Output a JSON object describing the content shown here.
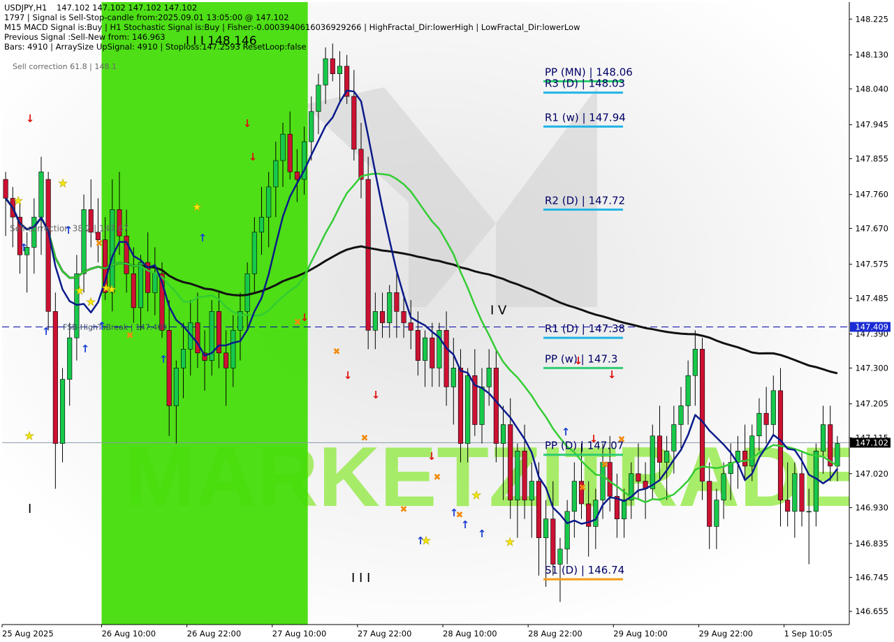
{
  "header": {
    "symbol": "USDJPY,H1",
    "ohlc": "147.102 147.102 147.102 147.102",
    "lines": [
      "1797 | Signal is Sell-Stop-candle from:2025.09.01 13:05:00 @ 147.102",
      "M15 MACD Signal is:Buy | H1 Stochastic Signal is:Buy | Fisher:-0.0003940616036929266 | HighFractal_Dir:lowerHigh | LowFractal_Dir:lowerLow",
      "Previous Signal :Sell-New from: 146.963",
      "Bars: 4910 | ArraySize UpSignal: 4910 | Stoploss:147.2593 ResetLoop:false"
    ]
  },
  "watermark": "MARKETZITRADE",
  "chart_data": {
    "type": "candlestick",
    "symbol": "USDJPY",
    "timeframe": "H1",
    "ylim": [
      146.62,
      148.27
    ],
    "y_ticks": [
      148.225,
      148.13,
      148.04,
      147.945,
      147.855,
      147.76,
      147.67,
      147.575,
      147.485,
      147.39,
      147.3,
      147.205,
      147.115,
      147.02,
      146.93,
      146.835,
      146.745,
      146.655
    ],
    "x_labels": [
      "25 Aug 2025",
      "26 Aug 10:00",
      "26 Aug 22:00",
      "27 Aug 10:00",
      "27 Aug 22:00",
      "28 Aug 10:00",
      "28 Aug 22:00",
      "29 Aug 10:00",
      "29 Aug 22:00",
      "1 Sep 10:05"
    ],
    "current_price": "147.102",
    "current_value": 147.102,
    "dashed_level_label": "147.409",
    "dashed_level": 147.409,
    "pivot_levels": [
      {
        "label": "PP (MN) | 148.06",
        "value": 148.06,
        "color": "#2ecc71"
      },
      {
        "label": "R3 (D) | 148.03",
        "value": 148.03,
        "color": "#1eb4e6"
      },
      {
        "label": "R1 (w) | 147.94",
        "value": 147.94,
        "color": "#1eb4e6"
      },
      {
        "label": "R2 (D) | 147.72",
        "value": 147.72,
        "color": "#1eb4e6"
      },
      {
        "label": "R1 (D) | 147.38",
        "value": 147.38,
        "color": "#1eb4e6"
      },
      {
        "label": "PP (w) | 147.3",
        "value": 147.3,
        "color": "#2ecc71"
      },
      {
        "label": "PP (D) | 147.07",
        "value": 147.07,
        "color": "#2ecc71"
      },
      {
        "label": "S1 (D) | 146.74",
        "value": 146.74,
        "color": "#f39c12"
      }
    ],
    "annotations": [
      {
        "text": "Sell correction 61.8 | 148.1",
        "value": 148.1
      },
      {
        "text": "Sell correction 38.2 | 147.67",
        "value": 147.67
      },
      {
        "text": "FSB-HighToBreak | 147.409",
        "value": 147.409
      },
      {
        "text": "I I I 148.146",
        "value": 148.146
      },
      {
        "text": "I V",
        "value": 147.45
      },
      {
        "text": "I I I",
        "value": 146.74
      },
      {
        "text": "I",
        "value": 146.93
      }
    ],
    "green_zone": [
      "26 Aug 2025 ~01:00",
      "27 Aug 2025 ~09:00"
    ],
    "candles": [
      [
        147.8,
        147.82,
        147.65,
        147.75
      ],
      [
        147.75,
        147.78,
        147.62,
        147.7
      ],
      [
        147.7,
        147.74,
        147.55,
        147.6
      ],
      [
        147.6,
        147.66,
        147.5,
        147.62
      ],
      [
        147.62,
        147.75,
        147.55,
        147.7
      ],
      [
        147.7,
        147.86,
        147.6,
        147.82
      ],
      [
        147.8,
        147.82,
        147.4,
        147.45
      ],
      [
        147.45,
        147.5,
        146.98,
        147.1
      ],
      [
        147.1,
        147.3,
        147.05,
        147.27
      ],
      [
        147.27,
        147.42,
        147.2,
        147.38
      ],
      [
        147.38,
        147.6,
        147.32,
        147.55
      ],
      [
        147.55,
        147.76,
        147.5,
        147.72
      ],
      [
        147.72,
        147.8,
        147.62,
        147.66
      ],
      [
        147.66,
        147.75,
        147.58,
        147.64
      ],
      [
        147.64,
        147.7,
        147.48,
        147.5
      ],
      [
        147.5,
        147.8,
        147.45,
        147.72
      ],
      [
        147.72,
        147.82,
        147.6,
        147.65
      ],
      [
        147.65,
        147.72,
        147.5,
        147.55
      ],
      [
        147.55,
        147.62,
        147.42,
        147.46
      ],
      [
        147.46,
        147.6,
        147.4,
        147.58
      ],
      [
        147.58,
        147.66,
        147.45,
        147.5
      ],
      [
        147.5,
        147.62,
        147.44,
        147.55
      ],
      [
        147.55,
        147.58,
        147.38,
        147.4
      ],
      [
        147.4,
        147.48,
        147.12,
        147.2
      ],
      [
        147.2,
        147.32,
        147.1,
        147.3
      ],
      [
        147.3,
        147.42,
        147.22,
        147.35
      ],
      [
        147.35,
        147.48,
        147.28,
        147.42
      ],
      [
        147.42,
        147.5,
        147.3,
        147.34
      ],
      [
        147.34,
        147.4,
        147.24,
        147.32
      ],
      [
        147.32,
        147.48,
        147.28,
        147.45
      ],
      [
        147.45,
        147.5,
        147.3,
        147.34
      ],
      [
        147.34,
        147.4,
        147.2,
        147.3
      ],
      [
        147.3,
        147.44,
        147.25,
        147.4
      ],
      [
        147.4,
        147.5,
        147.32,
        147.45
      ],
      [
        147.45,
        147.58,
        147.4,
        147.55
      ],
      [
        147.55,
        147.7,
        147.5,
        147.66
      ],
      [
        147.66,
        147.78,
        147.6,
        147.7
      ],
      [
        147.7,
        147.82,
        147.62,
        147.78
      ],
      [
        147.78,
        147.9,
        147.7,
        147.85
      ],
      [
        147.85,
        147.95,
        147.78,
        147.92
      ],
      [
        147.92,
        147.98,
        147.8,
        147.82
      ],
      [
        147.82,
        147.88,
        147.74,
        147.8
      ],
      [
        147.8,
        147.94,
        147.76,
        147.9
      ],
      [
        147.9,
        148.02,
        147.85,
        147.98
      ],
      [
        147.98,
        148.08,
        147.92,
        148.05
      ],
      [
        148.05,
        148.15,
        148.0,
        148.12
      ],
      [
        148.12,
        148.16,
        148.06,
        148.08
      ],
      [
        148.08,
        148.14,
        148.0,
        148.1
      ],
      [
        148.1,
        148.13,
        148.0,
        148.02
      ],
      [
        148.02,
        148.09,
        147.85,
        147.88
      ],
      [
        147.88,
        147.95,
        147.75,
        147.8
      ],
      [
        147.8,
        147.86,
        147.35,
        147.4
      ],
      [
        147.4,
        147.5,
        147.35,
        147.45
      ],
      [
        147.45,
        147.5,
        147.38,
        147.42
      ],
      [
        147.42,
        147.52,
        147.38,
        147.5
      ],
      [
        147.5,
        147.55,
        147.38,
        147.45
      ],
      [
        147.45,
        147.5,
        147.38,
        147.42
      ],
      [
        147.42,
        147.48,
        147.35,
        147.4
      ],
      [
        147.4,
        147.45,
        147.28,
        147.32
      ],
      [
        147.32,
        147.4,
        147.25,
        147.38
      ],
      [
        147.38,
        147.42,
        147.25,
        147.3
      ],
      [
        147.3,
        147.42,
        147.25,
        147.4
      ],
      [
        147.4,
        147.45,
        147.2,
        147.25
      ],
      [
        147.25,
        147.38,
        147.15,
        147.3
      ],
      [
        147.3,
        147.35,
        147.05,
        147.1
      ],
      [
        147.1,
        147.3,
        147.05,
        147.28
      ],
      [
        147.28,
        147.35,
        147.12,
        147.15
      ],
      [
        147.15,
        147.3,
        147.1,
        147.25
      ],
      [
        147.25,
        147.35,
        147.2,
        147.3
      ],
      [
        147.3,
        147.35,
        147.05,
        147.1
      ],
      [
        147.1,
        147.2,
        146.95,
        147.15
      ],
      [
        147.15,
        147.22,
        146.9,
        146.95
      ],
      [
        146.95,
        147.1,
        146.85,
        147.08
      ],
      [
        147.08,
        147.15,
        146.9,
        146.95
      ],
      [
        146.95,
        147.05,
        146.85,
        147.0
      ],
      [
        147.0,
        147.05,
        146.75,
        146.85
      ],
      [
        146.85,
        146.95,
        146.72,
        146.9
      ],
      [
        146.9,
        147.0,
        146.75,
        146.78
      ],
      [
        146.78,
        146.85,
        146.68,
        146.82
      ],
      [
        146.82,
        146.95,
        146.78,
        146.92
      ],
      [
        146.92,
        147.05,
        146.85,
        147.0
      ],
      [
        147.0,
        147.1,
        146.9,
        146.94
      ],
      [
        146.94,
        147.0,
        146.8,
        146.88
      ],
      [
        146.88,
        146.98,
        146.82,
        146.95
      ],
      [
        146.95,
        147.1,
        146.9,
        147.05
      ],
      [
        147.05,
        147.12,
        146.92,
        146.96
      ],
      [
        146.96,
        147.02,
        146.85,
        146.9
      ],
      [
        146.9,
        146.98,
        146.85,
        146.95
      ],
      [
        146.95,
        147.05,
        146.9,
        147.02
      ],
      [
        147.02,
        147.1,
        146.95,
        147.0
      ],
      [
        147.0,
        147.05,
        146.9,
        146.98
      ],
      [
        146.98,
        147.15,
        146.95,
        147.12
      ],
      [
        147.12,
        147.2,
        147.0,
        147.05
      ],
      [
        147.05,
        147.12,
        146.95,
        147.08
      ],
      [
        147.08,
        147.2,
        147.02,
        147.15
      ],
      [
        147.15,
        147.25,
        147.08,
        147.2
      ],
      [
        147.2,
        147.32,
        147.15,
        147.28
      ],
      [
        147.28,
        147.4,
        147.2,
        147.35
      ],
      [
        147.35,
        147.38,
        146.95,
        147.0
      ],
      [
        147.0,
        147.05,
        146.82,
        146.88
      ],
      [
        146.88,
        146.98,
        146.82,
        146.95
      ],
      [
        146.95,
        147.05,
        146.9,
        147.02
      ],
      [
        147.02,
        147.1,
        146.95,
        147.05
      ],
      [
        147.05,
        147.12,
        146.98,
        147.08
      ],
      [
        147.08,
        147.15,
        147.0,
        147.04
      ],
      [
        147.04,
        147.15,
        147.0,
        147.12
      ],
      [
        147.12,
        147.22,
        147.08,
        147.18
      ],
      [
        147.18,
        147.25,
        147.1,
        147.15
      ],
      [
        147.15,
        147.28,
        147.12,
        147.24
      ],
      [
        147.24,
        147.3,
        146.88,
        146.95
      ],
      [
        146.95,
        147.05,
        146.88,
        146.92
      ],
      [
        146.92,
        147.05,
        146.85,
        147.02
      ],
      [
        147.02,
        147.08,
        146.88,
        146.92
      ],
      [
        146.92,
        146.98,
        146.78,
        146.92
      ],
      [
        146.92,
        147.1,
        146.88,
        147.08
      ],
      [
        147.08,
        147.2,
        147.02,
        147.15
      ],
      [
        147.15,
        147.2,
        147.0,
        147.04
      ],
      [
        147.04,
        147.12,
        147.0,
        147.1
      ]
    ]
  },
  "icons": {
    "buy_arrow": "up-arrow-icon",
    "sell_arrow": "down-arrow-icon",
    "fractal_star": "star-icon",
    "cross": "cross-icon"
  }
}
